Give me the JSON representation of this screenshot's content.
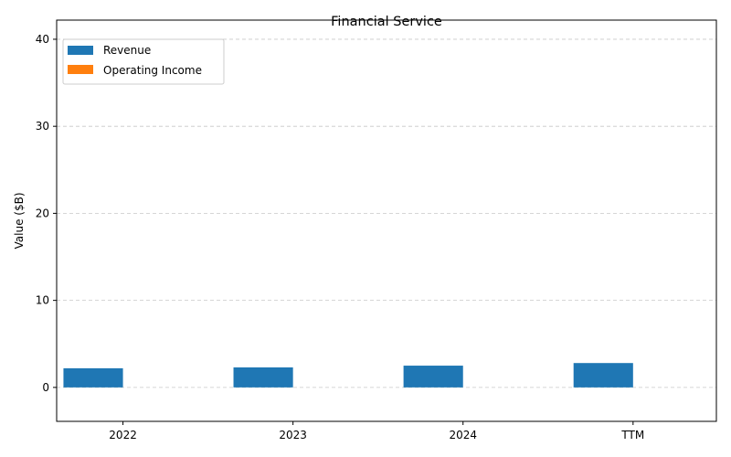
{
  "chart_data": {
    "type": "bar",
    "title": "Financial Service",
    "xlabel": "",
    "ylabel": "Value ($B)",
    "categories": [
      "2022",
      "2023",
      "2024",
      "TTM"
    ],
    "series": [
      {
        "name": "Revenue",
        "values": [
          2.2,
          2.3,
          2.5,
          2.8
        ],
        "color": "#1f77b4"
      },
      {
        "name": "Operating Income",
        "values": [
          0,
          0,
          0,
          0
        ],
        "color": "#ff7f0e"
      }
    ],
    "ylim": [
      -3.9,
      42.2
    ],
    "yticks": [
      0,
      10,
      20,
      30,
      40
    ],
    "grid": "y-dashed",
    "legend": "top-left"
  }
}
